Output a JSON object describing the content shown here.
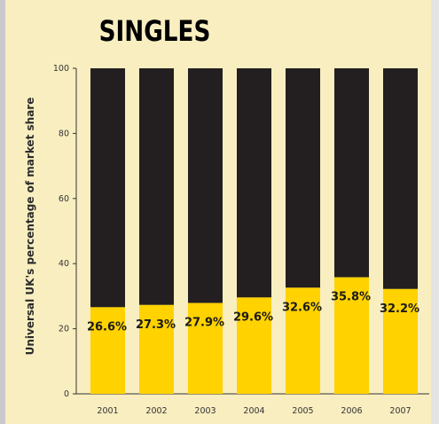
{
  "chart_data": {
    "type": "bar",
    "title": "SINGLES",
    "ylabel": "Universal UK's percentage of market share",
    "xlabel": "",
    "categories": [
      "2001",
      "2002",
      "2003",
      "2004",
      "2005",
      "2006",
      "2007"
    ],
    "values": [
      26.6,
      27.3,
      27.9,
      29.6,
      32.6,
      35.8,
      32.2
    ],
    "value_labels": [
      "26.6%",
      "27.3%",
      "27.9%",
      "29.6%",
      "32.6%",
      "35.8%",
      "32.2%"
    ],
    "ylim": [
      0,
      100
    ],
    "yticks": [
      "0",
      "20",
      "40",
      "60",
      "80",
      "100"
    ],
    "stacked_remainder": true,
    "grid": false,
    "colors": {
      "value": "#ffd200",
      "remainder": "#231f20",
      "background": "#f8eec0"
    }
  }
}
